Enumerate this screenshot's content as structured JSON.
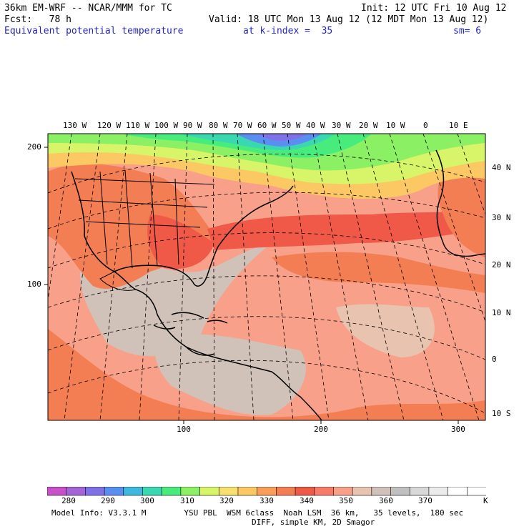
{
  "header": {
    "model": "36km EM-WRF -- NCAR/MMM for TC",
    "init": "Init: 12 UTC Fri 10 Aug 12",
    "fcst": "Fcst:   78 h",
    "valid": "Valid: 18 UTC Mon 13 Aug 12 (12 MDT Mon 13 Aug 12)",
    "field": "Equivalent potential temperature",
    "level": "at k-index =  35",
    "smooth": "sm= 6",
    "field_color": "#2424c8"
  },
  "map": {
    "top_labels": [
      "130 W",
      "120 W",
      "110 W",
      "100 W",
      "90 W",
      "80 W",
      "70 W",
      "60 W",
      "50 W",
      "40 W",
      "30 W",
      "20 W",
      "10 W",
      "0",
      "10 E"
    ],
    "right_labels": [
      "40 N",
      "30 N",
      "20 N",
      "10 N",
      "0",
      "10 S"
    ],
    "left_axis": [
      "200",
      "100"
    ],
    "bottom_axis": [
      "100",
      "200",
      "300"
    ]
  },
  "colorbar": {
    "labels": [
      "280",
      "290",
      "300",
      "310",
      "320",
      "330",
      "340",
      "350",
      "360",
      "370"
    ],
    "unit": "K",
    "colors": [
      "#c850c8",
      "#a464d8",
      "#8072e6",
      "#5a8ef0",
      "#3fb8e0",
      "#3ad8b0",
      "#48ec7c",
      "#8cf064",
      "#d8f468",
      "#f8e070",
      "#fcc864",
      "#f89e58",
      "#f47e54",
      "#f05848",
      "#f87a68",
      "#f8a08a",
      "#e8c4b0",
      "#d0c2b8",
      "#c0c0c0",
      "#d8d8d8",
      "#ececec",
      "#ffffff",
      "#ffffff"
    ]
  },
  "footer": {
    "line1": "Model Info: V3.3.1 M        YSU PBL  WSM 6class  Noah LSM  36 km,   35 levels,  180 sec",
    "line2": "DIFF, simple KM, 2D Smagor"
  }
}
